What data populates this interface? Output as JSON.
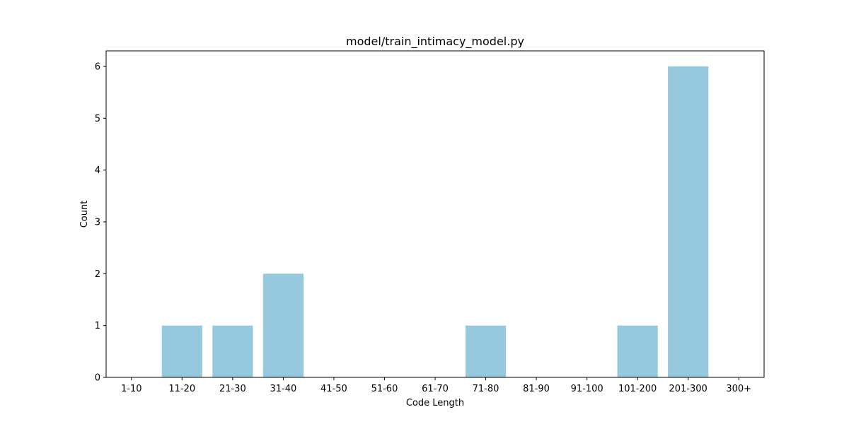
{
  "chart_data": {
    "type": "bar",
    "title": "model/train_intimacy_model.py",
    "xlabel": "Code Length",
    "ylabel": "Count",
    "categories": [
      "1-10",
      "11-20",
      "21-30",
      "31-40",
      "41-50",
      "51-60",
      "61-70",
      "71-80",
      "81-90",
      "91-100",
      "101-200",
      "201-300",
      "300+"
    ],
    "values": [
      0,
      1,
      1,
      2,
      0,
      0,
      0,
      1,
      0,
      0,
      1,
      6,
      0
    ],
    "ylim": [
      0,
      6.3
    ],
    "yticks": [
      0,
      1,
      2,
      3,
      4,
      5,
      6
    ],
    "grid": false,
    "bar_color": "#96c9de"
  }
}
